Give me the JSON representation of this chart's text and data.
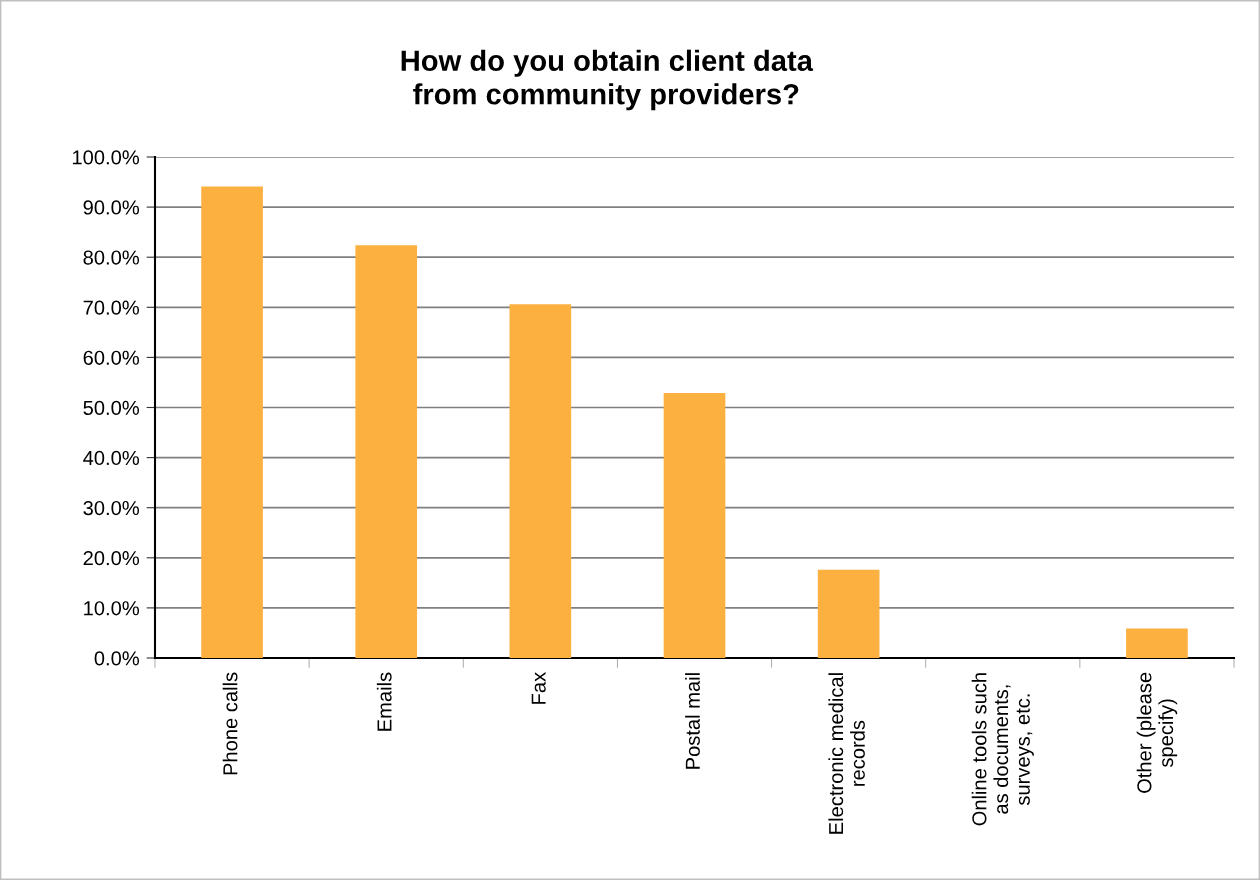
{
  "chart_data": {
    "type": "bar",
    "title": "How do you obtain client data\nfrom community providers?",
    "categories": [
      "Phone calls",
      "Emails",
      "Fax",
      "Postal mail",
      "Electronic medical\nrecords",
      "Online tools such\nas documents,\nsurveys, etc.",
      "Other (please\nspecify)"
    ],
    "values": [
      94.1,
      82.4,
      70.6,
      52.9,
      17.6,
      0,
      5.9
    ],
    "color": "#fbb040",
    "ylim": [
      0,
      100
    ],
    "yticks": [
      {
        "value": 0,
        "label": "0.0%"
      },
      {
        "value": 10,
        "label": "10.0%"
      },
      {
        "value": 20,
        "label": "20.0%"
      },
      {
        "value": 30,
        "label": "30.0%"
      },
      {
        "value": 40,
        "label": "40.0%"
      },
      {
        "value": 50,
        "label": "50.0%"
      },
      {
        "value": 60,
        "label": "60.0%"
      },
      {
        "value": 70,
        "label": "70.0%"
      },
      {
        "value": 80,
        "label": "80.0%"
      },
      {
        "value": 90,
        "label": "90.0%"
      },
      {
        "value": 100,
        "label": "100.0%"
      }
    ],
    "grid": "y",
    "legend": false
  }
}
